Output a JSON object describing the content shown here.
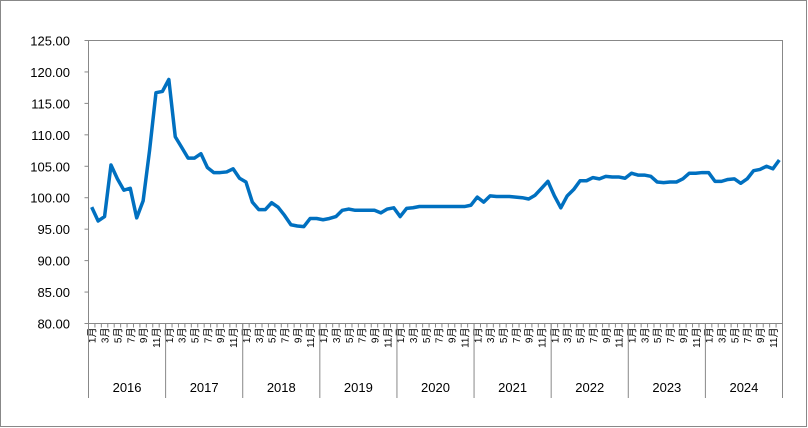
{
  "chart_data": {
    "type": "line",
    "x": [
      "1月",
      null,
      "3月",
      null,
      "5月",
      null,
      "7月",
      null,
      "9月",
      null,
      "11月",
      null,
      "1月",
      null,
      "3月",
      null,
      "5月",
      null,
      "7月",
      null,
      "9月",
      null,
      "11月",
      null,
      "1月",
      null,
      "3月",
      null,
      "5月",
      null,
      "7月",
      null,
      "9月",
      null,
      "11月",
      null,
      "1月",
      null,
      "3月",
      null,
      "5月",
      null,
      "7月",
      null,
      "9月",
      null,
      "11月",
      null,
      "1月",
      null,
      "3月",
      null,
      "5月",
      null,
      "7月",
      null,
      "9月",
      null,
      "11月",
      null,
      "1月",
      null,
      "3月",
      null,
      "5月",
      null,
      "7月",
      null,
      "9月",
      null,
      "11月",
      null,
      "1月",
      null,
      "3月",
      null,
      "5月",
      null,
      "7月",
      null,
      "9月",
      null,
      "11月",
      null,
      "1月",
      null,
      "3月",
      null,
      "5月",
      null,
      "7月",
      null,
      "9月",
      null,
      "11月",
      null,
      "1月",
      null,
      "3月",
      null,
      "5月",
      null,
      "7月",
      null,
      "9月",
      null,
      "11月",
      null
    ],
    "groups": [
      "2016",
      "2017",
      "2018",
      "2019",
      "2020",
      "2021",
      "2022",
      "2023",
      "2024"
    ],
    "series": [
      {
        "color": "#0070c0",
        "values": [
          98.5,
          96.3,
          97,
          105.2,
          103,
          101.2,
          101.5,
          96.8,
          99.5,
          107.5,
          116.7,
          116.9,
          118.8,
          109.7,
          108,
          106.3,
          106.3,
          107,
          104.8,
          104,
          104,
          104.1,
          104.6,
          103.1,
          102.5,
          99.3,
          98.1,
          98.1,
          99.2,
          98.5,
          97.2,
          95.7,
          95.5,
          95.4,
          96.7,
          96.7,
          96.5,
          96.7,
          97,
          98,
          98.2,
          98,
          98,
          98,
          98,
          97.6,
          98.2,
          98.4,
          97,
          98.3,
          98.4,
          98.6,
          98.6,
          98.6,
          98.6,
          98.6,
          98.6,
          98.6,
          98.6,
          98.8,
          100.1,
          99.3,
          100.3,
          100.2,
          100.2,
          100.2,
          100.1,
          100,
          99.8,
          100.4,
          101.5,
          102.6,
          100.3,
          98.4,
          100.3,
          101.3,
          102.7,
          102.7,
          103.2,
          103,
          103.4,
          103.3,
          103.3,
          103.1,
          103.9,
          103.6,
          103.6,
          103.4,
          102.5,
          102.4,
          102.5,
          102.5,
          103,
          103.9,
          103.9,
          104,
          104,
          102.6,
          102.6,
          102.9,
          103,
          102.3,
          103,
          104.3,
          104.5,
          105,
          104.6,
          106
        ]
      }
    ],
    "ylim": [
      80,
      125
    ],
    "yticks": [
      {
        "value": 80,
        "label": "80.00"
      },
      {
        "value": 85,
        "label": "85.00"
      },
      {
        "value": 90,
        "label": "90.00"
      },
      {
        "value": 95,
        "label": "95.00"
      },
      {
        "value": 100,
        "label": "100.00"
      },
      {
        "value": 105,
        "label": "105.00"
      },
      {
        "value": 110,
        "label": "110.00"
      },
      {
        "value": 115,
        "label": "115.00"
      },
      {
        "value": 120,
        "label": "120.00"
      },
      {
        "value": 125,
        "label": "125.00"
      }
    ]
  }
}
